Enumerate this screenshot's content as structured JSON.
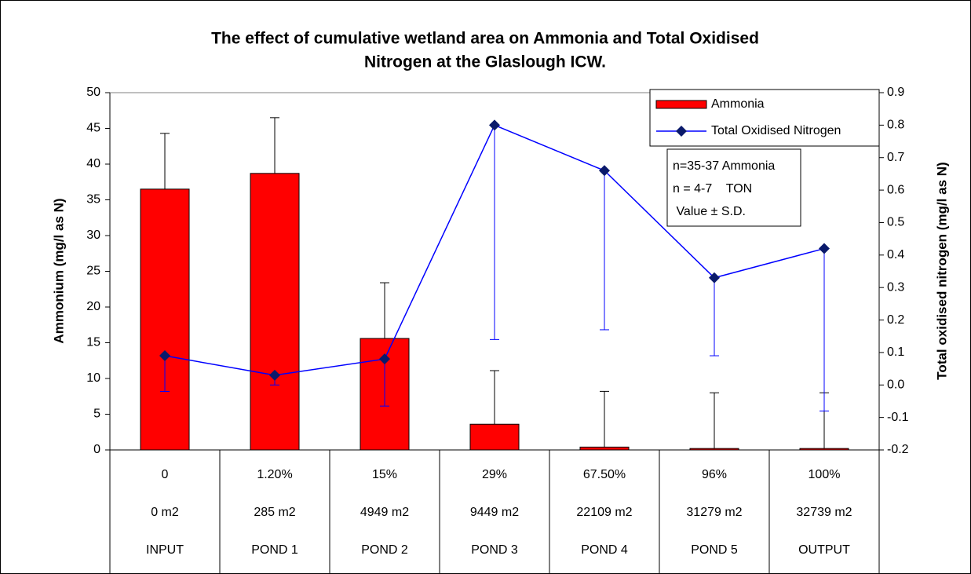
{
  "chart_data": {
    "type": "bar-line",
    "title": [
      "The effect of cumulative wetland area on Ammonia and Total Oxidised",
      "Nitrogen at the Glaslough ICW."
    ],
    "y_label": "Ammonium (mg/l as N)",
    "y2_label": "Total oxidised nitrogen (mg/l as N)",
    "categories": [
      [
        "0",
        "0 m2",
        "INPUT"
      ],
      [
        "1.20%",
        "285 m2",
        "POND 1"
      ],
      [
        "15%",
        "4949 m2",
        "POND 2"
      ],
      [
        "29%",
        "9449 m2",
        "POND 3"
      ],
      [
        "67.50%",
        "22109 m2",
        "POND 4"
      ],
      [
        "96%",
        "31279 m2",
        "POND 5"
      ],
      [
        "100%",
        "32739 m2",
        "OUTPUT"
      ]
    ],
    "series": [
      {
        "name": "Ammonia",
        "kind": "bar",
        "color": "#ff0000",
        "values": [
          36.5,
          38.7,
          15.6,
          3.6,
          0.4,
          0.2,
          0.2
        ],
        "errors": [
          7.8,
          7.8,
          7.8,
          7.5,
          7.8,
          7.8,
          7.8
        ],
        "error_direction": "up",
        "error_color": "#000000"
      },
      {
        "name": "Total Oxidised Nitrogen",
        "kind": "line",
        "axis": "y2",
        "color": "#0000ff",
        "marker_color": "#0a1a6b",
        "values": [
          0.09,
          0.03,
          0.08,
          0.8,
          0.66,
          0.33,
          0.42
        ],
        "errors": [
          0.11,
          0.03,
          0.145,
          0.66,
          0.49,
          0.24,
          0.5
        ],
        "error_direction": "down",
        "error_color": "#0000ff"
      }
    ],
    "ylim": [
      0,
      50
    ],
    "yticks": [
      0,
      5,
      10,
      15,
      20,
      25,
      30,
      35,
      40,
      45,
      50
    ],
    "y2lim": [
      -0.2,
      0.9
    ],
    "y2ticks": [
      -0.2,
      -0.1,
      {
        "value": 0,
        "label": "0.0"
      },
      0.1,
      0.2,
      0.3,
      0.4,
      0.5,
      0.6,
      0.7,
      0.8,
      0.9
    ],
    "annotation": [
      "n=35-37 Ammonia",
      "n = 4-7    TON",
      " Value ± S.D."
    ],
    "legend": "top-right",
    "grid": false
  }
}
